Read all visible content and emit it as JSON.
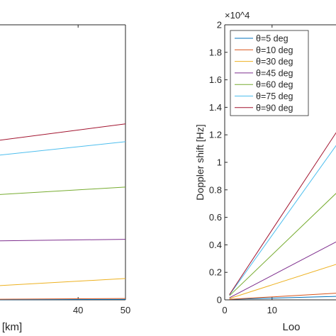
{
  "chart_data": [
    {
      "type": "line",
      "title": "",
      "xlabel": "[km]",
      "ylabel": "",
      "xlim": [
        0,
        50
      ],
      "ylim": [
        0,
        2
      ],
      "x_ticks": [
        40,
        50
      ],
      "y_ticks": [],
      "grid": false,
      "legend": "none",
      "x": [
        1,
        50
      ],
      "series": [
        {
          "color": "#0072BD",
          "values": [
            0,
            0.003
          ]
        },
        {
          "color": "#D95319",
          "values": [
            0,
            0.01
          ]
        },
        {
          "color": "#EDB120",
          "values": [
            0.06,
            0.155
          ]
        },
        {
          "color": "#7E2F8E",
          "values": [
            0.42,
            0.44
          ]
        },
        {
          "color": "#77AC30",
          "values": [
            0.72,
            0.82
          ]
        },
        {
          "color": "#4DBEEE",
          "values": [
            0.97,
            1.15
          ]
        },
        {
          "color": "#A2142F",
          "values": [
            1.06,
            1.28
          ]
        }
      ]
    },
    {
      "type": "line",
      "title": "",
      "xlabel": "Loo",
      "ylabel": "Doppler shift [Hz]",
      "y_exponent": "×10^4",
      "xlim": [
        0,
        50
      ],
      "ylim": [
        0,
        2
      ],
      "x_ticks": [
        0,
        10
      ],
      "y_ticks": [
        0,
        0.2,
        0.4,
        0.6,
        0.8,
        1,
        1.2,
        1.4,
        1.6,
        1.8,
        2
      ],
      "grid": false,
      "legend": "top-left",
      "x": [
        1,
        50
      ],
      "series": [
        {
          "name": "θ=5 deg",
          "color": "#0072BD",
          "values": [
            0.004,
            0.05
          ]
        },
        {
          "name": "θ=10 deg",
          "color": "#D95319",
          "values": [
            0.004,
            0.1
          ]
        },
        {
          "name": "θ=30 deg",
          "color": "#EDB120",
          "values": [
            0.01,
            0.55
          ]
        },
        {
          "name": "θ=45 deg",
          "color": "#7E2F8E",
          "values": [
            0.015,
            0.9
          ]
        },
        {
          "name": "θ=60 deg",
          "color": "#77AC30",
          "values": [
            0.03,
            1.65
          ]
        },
        {
          "name": "θ=75 deg",
          "color": "#4DBEEE",
          "values": [
            0.035,
            2.4
          ]
        },
        {
          "name": "θ=90 deg",
          "color": "#A2142F",
          "values": [
            0.038,
            2.6
          ]
        }
      ]
    }
  ]
}
